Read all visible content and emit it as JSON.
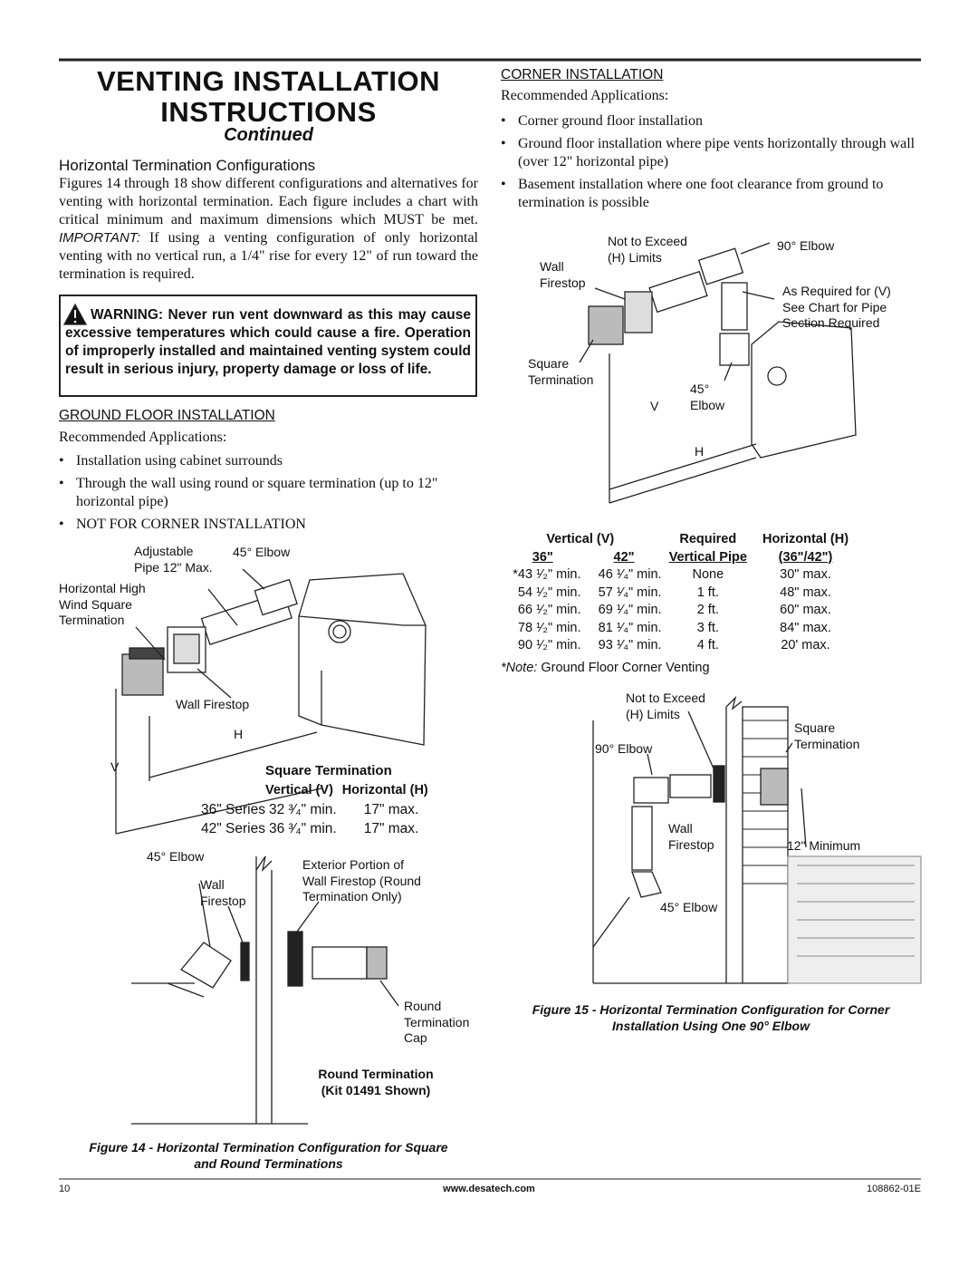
{
  "header": {
    "title_lines": [
      "VENTING INSTALLATION",
      "INSTRUCTIONS"
    ],
    "subtitle": "Continued"
  },
  "horizontal": {
    "heading": "Horizontal Termination Configurations",
    "paragraph": [
      "Figures 14 through 18 show different configurations and alternatives for venting with horizontal termination. Each figure includes a chart with critical minimum and maximum dimensions which MUST be met.",
      "IMPORTANT:",
      "If using a venting configuration of only horizontal venting with no vertical run, a 1/4\" rise for every 12\" of run toward the termination is required."
    ]
  },
  "warning": "WARNING: Never run vent downward as this may cause excessive temperatures which could cause a fire. Operation of improperly installed and maintained venting system could result in serious injury, property damage or loss of life.",
  "ground_floor": {
    "heading": "GROUND FLOOR INSTALLATION",
    "lead": "Recommended Applications:",
    "bullets": [
      "Installation using cabinet surrounds",
      "Through the wall using round or square termination (up to 12\" horizontal pipe)",
      "NOT FOR CORNER INSTALLATION"
    ]
  },
  "figure14": {
    "labels": [
      "Adjustable\nPipe 12\" Max.",
      "45° Elbow",
      "Horizontal High\nWind Square\nTermination",
      "Wall Firestop",
      "H",
      "V"
    ],
    "square_table": {
      "title": "Square Termination",
      "headers": [
        "Vertical (V)",
        "Horizontal (H)"
      ],
      "rows": [
        [
          "36\" Series",
          "32 ³⁄₄\" min.",
          "17\" max."
        ],
        [
          "42\" Series",
          "36 ³⁄₄\" min.",
          "17\" max."
        ]
      ]
    },
    "round_labels": [
      "45° Elbow",
      "Wall\nFirestop",
      "Exterior Portion of\nWall Firestop (Round\nTermination Only)",
      "Round\nTermination\nCap"
    ],
    "round_title": "Round Termination\n(Kit 01491 Shown)",
    "caption": "Figure 14 - Horizontal Termination Configuration for Square\nand Round Terminations"
  },
  "corner": {
    "heading": "CORNER INSTALLATION",
    "lead": "Recommended Applications:",
    "bullets": [
      "Corner ground floor installation",
      "Ground floor installation where pipe vents horizontally through wall (over 12\" horizontal pipe)",
      "Basement installation where one foot clearance from ground to termination is possible"
    ]
  },
  "figure15": {
    "top_labels": [
      "Not to Exceed\n(H) Limits",
      "90° Elbow",
      "Wall\nFirestop",
      "As Required for (V)\nSee Chart for Pipe\nSection Required",
      "Square\nTermination",
      "45°\nElbow",
      "V",
      "H"
    ],
    "table": {
      "header1": [
        "Vertical (V)",
        "Required",
        "Horizontal (H)"
      ],
      "header2": [
        "36\"",
        "42\"",
        "Vertical Pipe",
        "(36\"/42\")"
      ],
      "rows": [
        [
          "*43 ¹⁄₂\" min.",
          "46 ¹⁄₄\" min.",
          "None",
          "30\" max."
        ],
        [
          "54 ¹⁄₂\" min.",
          "57 ¹⁄₄\" min.",
          "1 ft.",
          "48\" max."
        ],
        [
          "66 ¹⁄₂\" min.",
          "69 ¹⁄₄\" min.",
          "2 ft.",
          "60\" max."
        ],
        [
          "78 ¹⁄₂\" min.",
          "81 ¹⁄₄\" min.",
          "3 ft.",
          "84\" max."
        ],
        [
          "90 ¹⁄₂\" min.",
          "93 ¹⁄₄\" min.",
          "4 ft.",
          "20' max."
        ]
      ],
      "note": [
        "*Note:",
        "Ground Floor Corner Venting"
      ]
    },
    "bottom_labels": [
      "Not to Exceed\n(H) Limits",
      "90° Elbow",
      "Square\nTermination",
      "Wall\nFirestop",
      "12\" Minimum",
      "45° Elbow"
    ],
    "caption": "Figure 15 - Horizontal Termination Configuration for Corner\nInstallation Using One 90° Elbow"
  },
  "footer": {
    "page": "10",
    "url": "www.desatech.com",
    "doc": "108862-01E"
  }
}
